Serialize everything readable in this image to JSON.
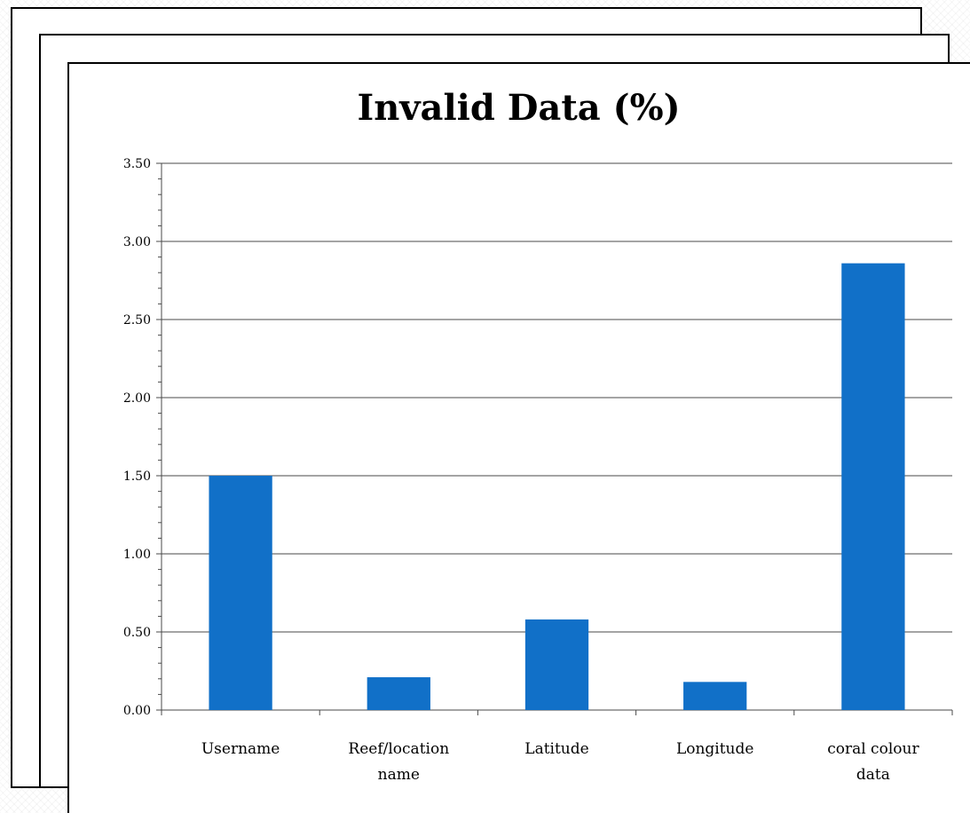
{
  "chart_data": {
    "type": "bar",
    "title": "Invalid Data (%)",
    "categories": [
      [
        "Username"
      ],
      [
        "Reef/location",
        "name"
      ],
      [
        "Latitude"
      ],
      [
        "Longitude"
      ],
      [
        "coral colour",
        "data"
      ]
    ],
    "values": [
      1.5,
      0.21,
      0.58,
      0.18,
      2.86
    ],
    "yticks": [
      "0.00",
      "0.50",
      "1.00",
      "1.50",
      "2.00",
      "2.50",
      "3.00",
      "3.50"
    ],
    "ylim": [
      0,
      3.5
    ],
    "xlabel": "",
    "ylabel": "",
    "grid": true,
    "legend": "none",
    "colors": {
      "bar": "#1170C8",
      "grid": "#4a4a4a",
      "axis": "#4a4a4a"
    }
  }
}
